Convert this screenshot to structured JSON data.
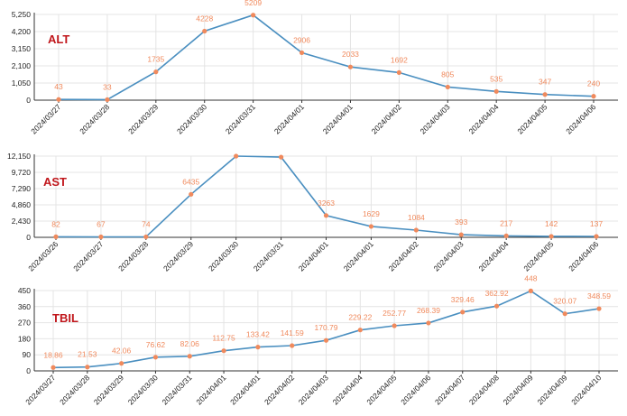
{
  "colors": {
    "line": "#4a8fc0",
    "marker": "#f08a5d",
    "label": "#f08a5d",
    "title": "#c0161b",
    "grid": "#e4e4e4",
    "axis": "#333333"
  },
  "chart_data": [
    {
      "type": "line",
      "title": "ALT",
      "categories": [
        "2024/03/27",
        "2024/03/28",
        "2024/03/29",
        "2024/03/30",
        "2024/03/31",
        "2024/04/01",
        "2024/04/01",
        "2024/04/02",
        "2024/04/03",
        "2024/04/04",
        "2024/04/05",
        "2024/04/06"
      ],
      "values": [
        43,
        33,
        1735,
        4228,
        5209,
        2906,
        2033,
        1692,
        805,
        535,
        347,
        240
      ],
      "labels": [
        "43",
        "33",
        "1735",
        "4228",
        "5209",
        "2906",
        "2033",
        "1692",
        "805",
        "535",
        "347",
        "240"
      ],
      "yticks": [
        "0",
        "1,050",
        "2,100",
        "3,150",
        "4,200",
        "5,250"
      ],
      "ylim": [
        0,
        5250
      ],
      "grid": true
    },
    {
      "type": "line",
      "title": "AST",
      "categories": [
        "2024/03/26",
        "2024/03/27",
        "2024/03/28",
        "2024/03/29",
        "2024/03/30",
        "2024/03/31",
        "2024/04/01",
        "2024/04/01",
        "2024/04/02",
        "2024/04/03",
        "2024/04/04",
        "2024/04/05",
        "2024/04/06"
      ],
      "values": [
        82,
        67,
        74,
        6435,
        12150,
        12000,
        3263,
        1629,
        1084,
        393,
        217,
        142,
        137
      ],
      "labels": [
        "82",
        "67",
        "74",
        "6435",
        "",
        "",
        "3263",
        "1629",
        "1084",
        "393",
        "217",
        "142",
        "137"
      ],
      "yticks": [
        "0",
        "2,430",
        "4,860",
        "7,290",
        "9,720",
        "12,150"
      ],
      "ylim": [
        0,
        12150
      ],
      "grid": true
    },
    {
      "type": "line",
      "title": "TBIL",
      "categories": [
        "2024/03/27",
        "2024/03/28",
        "2024/03/29",
        "2024/03/30",
        "2024/03/31",
        "2024/04/01",
        "2024/04/01",
        "2024/04/02",
        "2024/04/03",
        "2024/04/04",
        "2024/04/05",
        "2024/04/06",
        "2024/04/07",
        "2024/04/08",
        "2024/04/09",
        "2024/04/09",
        "2024/04/10"
      ],
      "values": [
        18.86,
        21.53,
        42.06,
        76.62,
        82.06,
        112.75,
        133.42,
        141.59,
        170.79,
        229.22,
        252.77,
        268.39,
        329.46,
        362.92,
        448,
        320.07,
        348.59
      ],
      "labels": [
        "18.86",
        "21.53",
        "42.06",
        "76.62",
        "82.06",
        "112.75",
        "133.42",
        "141.59",
        "170.79",
        "229.22",
        "252.77",
        "268.39",
        "329.46",
        "362.92",
        "448",
        "320.07",
        "348.59"
      ],
      "yticks": [
        "0",
        "90",
        "180",
        "270",
        "360",
        "450"
      ],
      "ylim": [
        0,
        450
      ],
      "grid": true
    }
  ]
}
